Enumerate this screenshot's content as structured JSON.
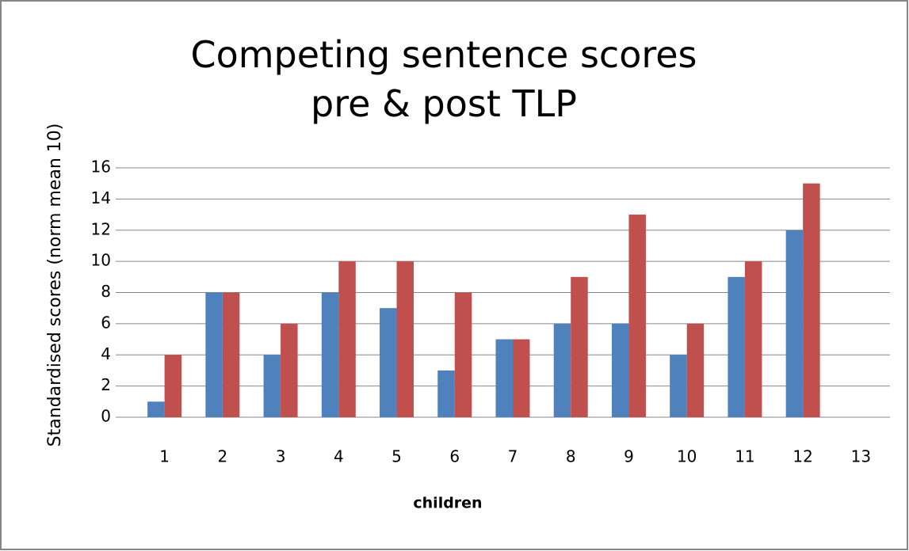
{
  "chart_data": {
    "type": "bar",
    "title": "Competing sentence scores pre & post TLP",
    "y_label": "Standardised scores (norm mean 10)",
    "x_label": "children",
    "categories": [
      "1",
      "2",
      "3",
      "4",
      "5",
      "6",
      "7",
      "8",
      "9",
      "10",
      "11",
      "12",
      "13"
    ],
    "series": [
      {
        "color": "#4f81bd",
        "values": [
          1,
          8,
          4,
          8,
          7,
          3,
          5,
          6,
          6,
          4,
          9,
          12,
          null
        ]
      },
      {
        "color": "#c0504d",
        "values": [
          4,
          8,
          6,
          10,
          10,
          8,
          5,
          9,
          13,
          6,
          10,
          15,
          null
        ]
      }
    ],
    "ylim": [
      0,
      16
    ],
    "yticks": [
      0,
      2,
      4,
      6,
      8,
      10,
      12,
      14,
      16
    ],
    "grid": true
  }
}
